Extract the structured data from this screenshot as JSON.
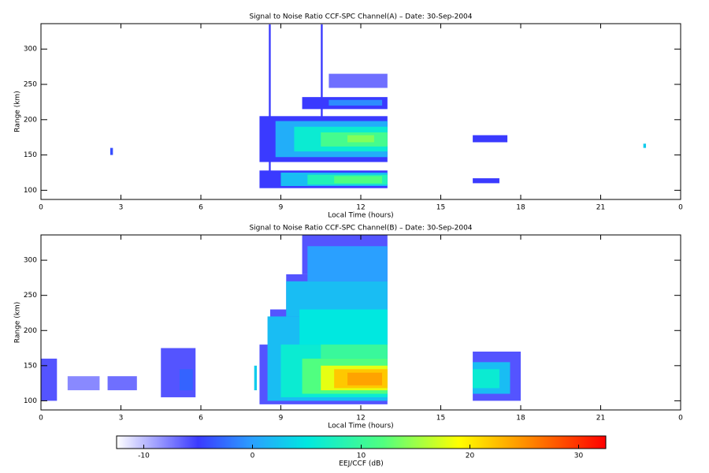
{
  "chart_data": [
    {
      "type": "heatmap",
      "title": "Signal to Noise Ratio CCF-SPC Channel(A) – Date: 30-Sep-2004",
      "x_label": "Local Time (hours)",
      "y_label": "Range (km)",
      "xlim": [
        0,
        24
      ],
      "xticks": [
        0,
        3,
        6,
        9,
        12,
        15,
        18,
        21,
        {
          "value": 24,
          "label": "0"
        }
      ],
      "ylim": [
        87,
        336
      ],
      "yticks": [
        100,
        150,
        200,
        250,
        300
      ],
      "cells": [
        {
          "x": [
            8.2,
            13
          ],
          "y": [
            103,
            128
          ],
          "value": -5
        },
        {
          "x": [
            9.0,
            13
          ],
          "y": [
            106,
            125
          ],
          "value": 2
        },
        {
          "x": [
            10.0,
            13
          ],
          "y": [
            108,
            122
          ],
          "value": 8
        },
        {
          "x": [
            11,
            12.8
          ],
          "y": [
            110,
            120
          ],
          "value": 12
        },
        {
          "x": [
            8.2,
            13
          ],
          "y": [
            140,
            205
          ],
          "value": -5
        },
        {
          "x": [
            8.8,
            13
          ],
          "y": [
            147,
            198
          ],
          "value": 1
        },
        {
          "x": [
            9.5,
            13
          ],
          "y": [
            155,
            190
          ],
          "value": 6
        },
        {
          "x": [
            10.5,
            13
          ],
          "y": [
            162,
            182
          ],
          "value": 11
        },
        {
          "x": [
            11.5,
            12.5
          ],
          "y": [
            168,
            178
          ],
          "value": 14
        },
        {
          "x": [
            9.8,
            13
          ],
          "y": [
            215,
            232
          ],
          "value": -5
        },
        {
          "x": [
            10.8,
            12.8
          ],
          "y": [
            220,
            228
          ],
          "value": -1
        },
        {
          "x": [
            10.8,
            13
          ],
          "y": [
            245,
            265
          ],
          "value": -7
        },
        {
          "x": [
            16.2,
            17.5
          ],
          "y": [
            168,
            178
          ],
          "value": -5
        },
        {
          "x": [
            16.2,
            17.2
          ],
          "y": [
            110,
            117
          ],
          "value": -5
        },
        {
          "x": [
            8.55,
            8.62
          ],
          "y": [
            120,
            335
          ],
          "value": -5
        },
        {
          "x": [
            10.5,
            10.57
          ],
          "y": [
            200,
            335
          ],
          "value": -5
        },
        {
          "x": [
            2.6,
            2.7
          ],
          "y": [
            150,
            160
          ],
          "value": -4
        },
        {
          "x": [
            22.6,
            22.7
          ],
          "y": [
            160,
            166
          ],
          "value": 3
        }
      ]
    },
    {
      "type": "heatmap",
      "title": "Signal to Noise Ratio CCF-SPC Channel(B) – Date: 30-Sep-2004",
      "x_label": "Local Time (hours)",
      "y_label": "Range (km)",
      "xlim": [
        0,
        24
      ],
      "xticks": [
        0,
        3,
        6,
        9,
        12,
        15,
        18,
        21,
        {
          "value": 24,
          "label": "0"
        }
      ],
      "ylim": [
        87,
        336
      ],
      "yticks": [
        100,
        150,
        200,
        250,
        300
      ],
      "cells": [
        {
          "x": [
            0,
            0.6
          ],
          "y": [
            100,
            160
          ],
          "value": -6
        },
        {
          "x": [
            1,
            2.2
          ],
          "y": [
            115,
            135
          ],
          "value": -8
        },
        {
          "x": [
            2.5,
            3.6
          ],
          "y": [
            115,
            135
          ],
          "value": -7
        },
        {
          "x": [
            4.5,
            5.8
          ],
          "y": [
            105,
            175
          ],
          "value": -6
        },
        {
          "x": [
            5.2,
            5.7
          ],
          "y": [
            115,
            145
          ],
          "value": -3
        },
        {
          "x": [
            8.2,
            13
          ],
          "y": [
            95,
            180
          ],
          "value": -6
        },
        {
          "x": [
            8.6,
            13
          ],
          "y": [
            180,
            230
          ],
          "value": -6
        },
        {
          "x": [
            9.2,
            13
          ],
          "y": [
            230,
            280
          ],
          "value": -6
        },
        {
          "x": [
            9.8,
            13
          ],
          "y": [
            280,
            336
          ],
          "value": -6
        },
        {
          "x": [
            8.5,
            13
          ],
          "y": [
            100,
            220
          ],
          "value": 2
        },
        {
          "x": [
            9.2,
            13
          ],
          "y": [
            220,
            270
          ],
          "value": 2
        },
        {
          "x": [
            10,
            13
          ],
          "y": [
            270,
            320
          ],
          "value": 0
        },
        {
          "x": [
            9,
            13
          ],
          "y": [
            105,
            180
          ],
          "value": 6
        },
        {
          "x": [
            9.7,
            13
          ],
          "y": [
            180,
            230
          ],
          "value": 5
        },
        {
          "x": [
            9.8,
            13
          ],
          "y": [
            110,
            160
          ],
          "value": 12
        },
        {
          "x": [
            10.5,
            13
          ],
          "y": [
            160,
            180
          ],
          "value": 10
        },
        {
          "x": [
            10.5,
            13
          ],
          "y": [
            115,
            150
          ],
          "value": 18
        },
        {
          "x": [
            11,
            13
          ],
          "y": [
            118,
            145
          ],
          "value": 22
        },
        {
          "x": [
            11.5,
            12.8
          ],
          "y": [
            122,
            140
          ],
          "value": 24
        },
        {
          "x": [
            16.2,
            18
          ],
          "y": [
            100,
            170
          ],
          "value": -6
        },
        {
          "x": [
            16.2,
            17.6
          ],
          "y": [
            110,
            155
          ],
          "value": 2
        },
        {
          "x": [
            16.2,
            17.2
          ],
          "y": [
            118,
            145
          ],
          "value": 6
        },
        {
          "x": [
            8.0,
            8.1
          ],
          "y": [
            115,
            150
          ],
          "value": 3
        }
      ]
    },
    {
      "type": "colorbar",
      "label": "EEJ/CCF (dB)",
      "xlim": [
        -12.5,
        32.5
      ],
      "xticks": [
        -10,
        0,
        10,
        20,
        30
      ],
      "colormap": [
        [
          -12.5,
          "#ffffff"
        ],
        [
          -5,
          "#3a3aff"
        ],
        [
          0,
          "#2aa0ff"
        ],
        [
          5,
          "#00e8e0"
        ],
        [
          12,
          "#50ff80"
        ],
        [
          19,
          "#ffff00"
        ],
        [
          25,
          "#ff9000"
        ],
        [
          32.5,
          "#ff0000"
        ]
      ]
    }
  ]
}
